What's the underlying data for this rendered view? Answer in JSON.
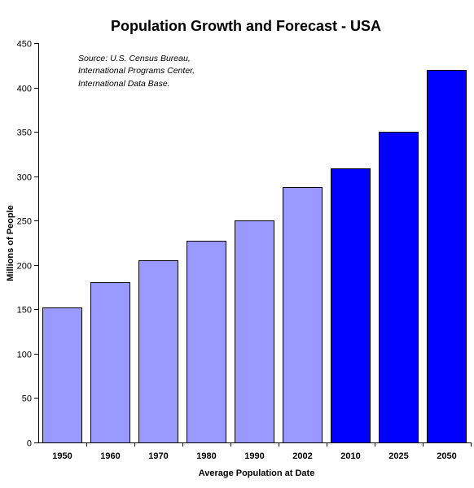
{
  "chart_data": {
    "type": "bar",
    "title": "Population Growth and Forecast - USA",
    "xlabel": "Average Population at Date",
    "ylabel": "Millions of People",
    "categories": [
      "1950",
      "1960",
      "1970",
      "1980",
      "1990",
      "2002",
      "2010",
      "2025",
      "2050"
    ],
    "values": [
      152,
      181,
      205,
      227,
      250,
      288,
      309,
      350,
      420
    ],
    "bar_colors": [
      "#9999ff",
      "#9999ff",
      "#9999ff",
      "#9999ff",
      "#9999ff",
      "#9999ff",
      "#0000ff",
      "#0000ff",
      "#0000ff"
    ],
    "ylim": [
      0,
      450
    ],
    "yticks": [
      0,
      50,
      100,
      150,
      200,
      250,
      300,
      350,
      400,
      450
    ],
    "grid": false,
    "legend": "none",
    "note": [
      "Source:  U.S. Census Bureau,",
      "International Programs Center,",
      "International Data Base."
    ]
  }
}
